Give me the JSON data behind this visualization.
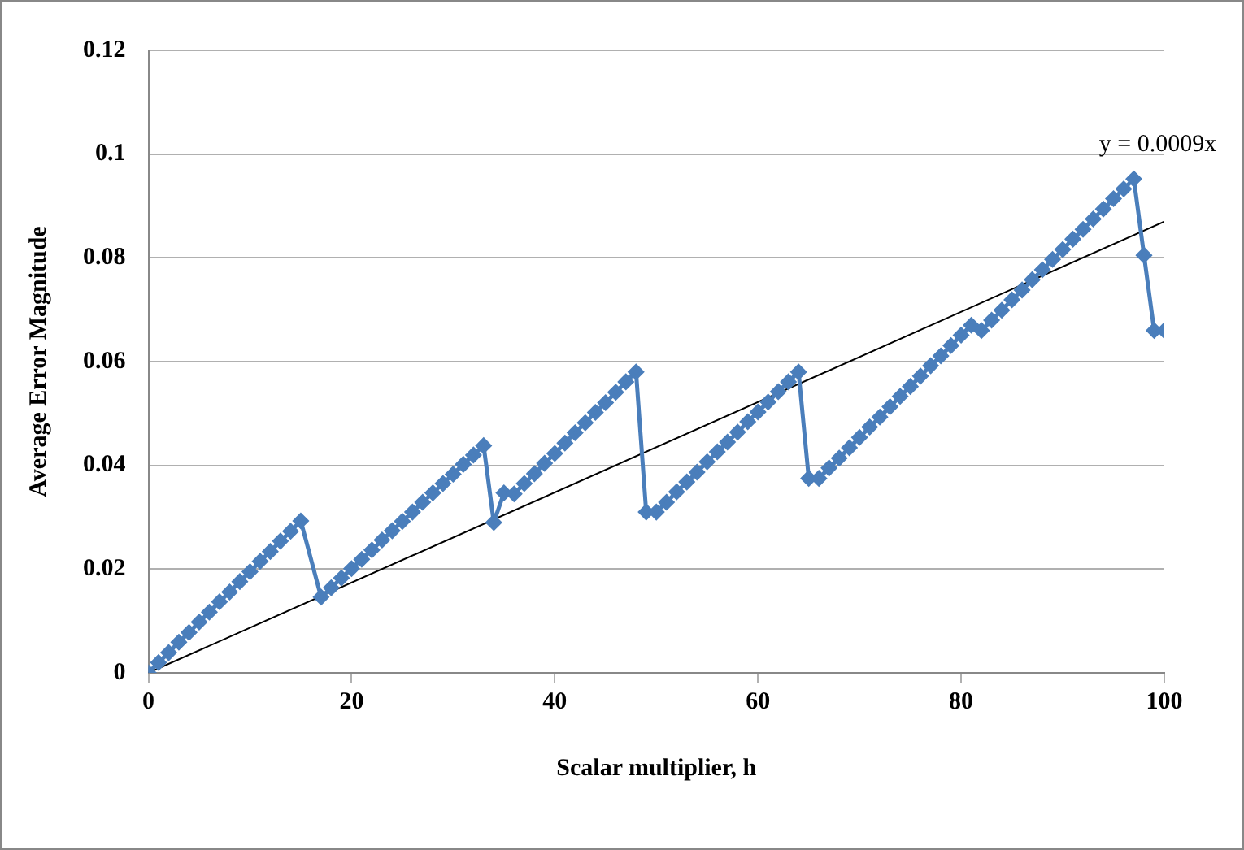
{
  "chart_data": {
    "type": "line",
    "xlabel": "Scalar multiplier, h",
    "ylabel": "Average Error Magnitude",
    "xlim": [
      0,
      100
    ],
    "xticks": [
      0,
      20,
      40,
      60,
      80,
      100
    ],
    "ylim": [
      0,
      0.12
    ],
    "yticks": [
      0,
      0.02,
      0.04,
      0.06,
      0.08,
      0.1,
      0.12
    ],
    "grid": "y",
    "legend": false,
    "series": [
      {
        "color": "#4a7ebb",
        "marker": "diamond",
        "x": [
          0,
          1,
          2,
          3,
          4,
          5,
          6,
          7,
          8,
          9,
          10,
          11,
          12,
          13,
          14,
          15,
          17,
          18,
          19,
          20,
          21,
          22,
          23,
          24,
          25,
          26,
          27,
          28,
          29,
          30,
          31,
          32,
          33,
          34,
          35,
          36,
          37,
          38,
          39,
          40,
          41,
          42,
          43,
          44,
          45,
          46,
          47,
          48,
          49,
          50,
          51,
          52,
          53,
          54,
          55,
          56,
          57,
          58,
          59,
          60,
          61,
          62,
          63,
          64,
          65,
          66,
          67,
          68,
          69,
          70,
          71,
          72,
          73,
          74,
          75,
          76,
          77,
          78,
          79,
          80,
          81,
          82,
          83,
          84,
          85,
          86,
          87,
          88,
          89,
          90,
          91,
          92,
          93,
          94,
          95,
          96,
          97,
          98,
          99,
          100
        ],
        "values": [
          0,
          0.002,
          0.0039,
          0.0059,
          0.0078,
          0.0098,
          0.0117,
          0.0137,
          0.0156,
          0.0176,
          0.0195,
          0.0215,
          0.0234,
          0.0254,
          0.0273,
          0.0293,
          0.0146,
          0.0164,
          0.0183,
          0.0201,
          0.0219,
          0.0237,
          0.0256,
          0.0274,
          0.0292,
          0.031,
          0.0329,
          0.0347,
          0.0365,
          0.0383,
          0.0402,
          0.042,
          0.0438,
          0.029,
          0.0347,
          0.0345,
          0.0365,
          0.0384,
          0.0404,
          0.0423,
          0.0443,
          0.0463,
          0.0482,
          0.0502,
          0.0521,
          0.0541,
          0.0561,
          0.058,
          0.031,
          0.031,
          0.0329,
          0.0349,
          0.0368,
          0.0387,
          0.0407,
          0.0426,
          0.0445,
          0.0464,
          0.0484,
          0.0503,
          0.0522,
          0.0542,
          0.0561,
          0.058,
          0.0375,
          0.0375,
          0.0395,
          0.0414,
          0.0434,
          0.0454,
          0.0474,
          0.0493,
          0.0513,
          0.0533,
          0.0552,
          0.0572,
          0.0592,
          0.0611,
          0.0631,
          0.0651,
          0.067,
          0.066,
          0.068,
          0.0699,
          0.0719,
          0.0738,
          0.0758,
          0.0777,
          0.0797,
          0.0816,
          0.0836,
          0.0855,
          0.0875,
          0.0894,
          0.0914,
          0.0933,
          0.0952,
          0.0805,
          0.066,
          0.066
        ]
      },
      {
        "color": "#000000",
        "marker": "none",
        "x": [
          0,
          100
        ],
        "values": [
          0,
          0.087
        ]
      }
    ],
    "annotations": [
      {
        "text": "y = 0.0009x",
        "x": 100,
        "y": 0.087
      }
    ]
  }
}
